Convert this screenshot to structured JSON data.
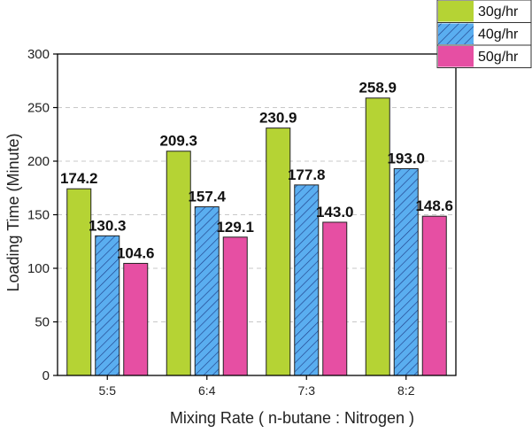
{
  "chart_data": {
    "type": "bar",
    "title": "",
    "xlabel": "Mixing Rate ( n-butane : Nitrogen )",
    "ylabel": "Loading Time (Minute)",
    "categories": [
      "5:5",
      "6:4",
      "7:3",
      "8:2"
    ],
    "ylim": [
      0,
      300
    ],
    "yticks": [
      0,
      50,
      100,
      150,
      200,
      250,
      300
    ],
    "grid": true,
    "legend_position": "top-right",
    "series": [
      {
        "name": "30g/hr",
        "color": "#b5d334",
        "pattern": "solid",
        "values": [
          174.2,
          209.3,
          230.9,
          258.9
        ],
        "labels": [
          "174.2",
          "209.3",
          "230.9",
          "258.9"
        ]
      },
      {
        "name": "40g/hr",
        "color": "#5aaef0",
        "pattern": "hatch",
        "values": [
          130.3,
          157.4,
          177.8,
          193.0
        ],
        "labels": [
          "130.3",
          "157.4",
          "177.8",
          "193.0"
        ]
      },
      {
        "name": "50g/hr",
        "color": "#e64fa3",
        "pattern": "solid",
        "values": [
          104.6,
          129.1,
          143.0,
          148.6
        ],
        "labels": [
          "104.6",
          "129.1",
          "143.0",
          "148.6"
        ]
      }
    ]
  }
}
